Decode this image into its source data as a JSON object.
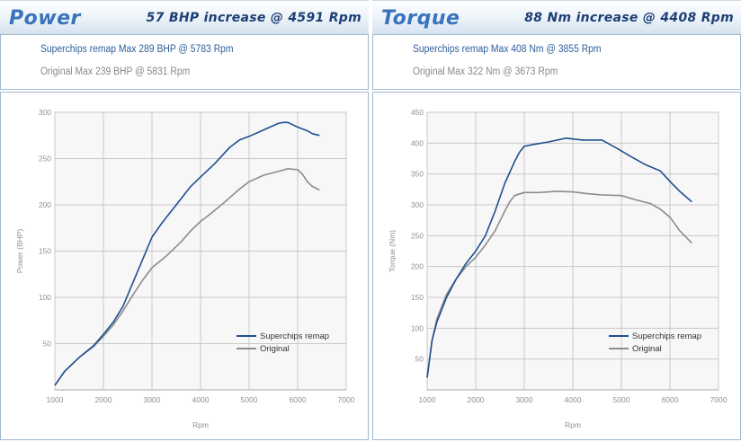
{
  "panels": {
    "power": {
      "title": "Power",
      "increase": "57 BHP increase @ 4591 Rpm",
      "remap_line": "Superchips remap Max 289 BHP @ 5783 Rpm",
      "original_line": "Original Max 239 BHP @ 5831 Rpm"
    },
    "torque": {
      "title": "Torque",
      "increase": "88 Nm increase @ 4408 Rpm",
      "remap_line": "Superchips remap Max 408 Nm @ 3855 Rpm",
      "original_line": "Original Max 322 Nm @ 3673 Rpm"
    }
  },
  "colors": {
    "remap": "#1f4f8f",
    "original": "#8c8c8c",
    "grid": "#c8c8c8",
    "plot_bg": "#f7f7f7",
    "title": "#3a73bd",
    "increase": "#1d3f75"
  },
  "chart_data": [
    {
      "type": "line",
      "xlabel": "Rpm",
      "ylabel": "Power (BHP)",
      "xlim": [
        1000,
        7000
      ],
      "ylim": [
        0,
        300
      ],
      "xticks": [
        1000,
        2000,
        3000,
        4000,
        5000,
        6000,
        7000
      ],
      "yticks": [
        50,
        100,
        150,
        200,
        250,
        300
      ],
      "grid": true,
      "legend_position": "bottom-right",
      "series": [
        {
          "name": "Superchips remap",
          "key": "remap",
          "x": [
            1000,
            1200,
            1500,
            1800,
            2000,
            2200,
            2400,
            2600,
            2800,
            3000,
            3200,
            3500,
            3800,
            4000,
            4300,
            4600,
            4800,
            5000,
            5300,
            5600,
            5700,
            5800,
            6000,
            6200,
            6300,
            6450
          ],
          "y": [
            5,
            20,
            35,
            48,
            60,
            73,
            90,
            115,
            140,
            165,
            180,
            200,
            220,
            230,
            245,
            262,
            270,
            274,
            281,
            288,
            289,
            289,
            284,
            280,
            277,
            275
          ]
        },
        {
          "name": "Original",
          "key": "original",
          "x": [
            1000,
            1200,
            1500,
            1800,
            2000,
            2200,
            2400,
            2600,
            2800,
            3000,
            3300,
            3600,
            3800,
            4000,
            4200,
            4500,
            4800,
            5000,
            5300,
            5600,
            5800,
            6000,
            6100,
            6200,
            6300,
            6450
          ],
          "y": [
            5,
            20,
            35,
            47,
            58,
            70,
            85,
            102,
            118,
            132,
            145,
            160,
            172,
            182,
            190,
            203,
            217,
            225,
            232,
            236,
            239,
            238,
            233,
            225,
            220,
            216
          ]
        }
      ]
    },
    {
      "type": "line",
      "xlabel": "Rpm",
      "ylabel": "Torque (Nm)",
      "xlim": [
        1000,
        7000
      ],
      "ylim": [
        0,
        450
      ],
      "xticks": [
        1000,
        2000,
        3000,
        4000,
        5000,
        6000,
        7000
      ],
      "yticks": [
        50,
        100,
        150,
        200,
        250,
        300,
        350,
        400,
        450
      ],
      "grid": true,
      "legend_position": "bottom-right",
      "series": [
        {
          "name": "Superchips remap",
          "key": "remap",
          "x": [
            1000,
            1100,
            1200,
            1400,
            1600,
            1800,
            2000,
            2200,
            2400,
            2600,
            2800,
            2900,
            3000,
            3200,
            3500,
            3855,
            4200,
            4600,
            4900,
            5200,
            5500,
            5800,
            6000,
            6200,
            6450
          ],
          "y": [
            20,
            80,
            110,
            150,
            180,
            205,
            225,
            250,
            290,
            335,
            370,
            385,
            395,
            398,
            402,
            408,
            405,
            405,
            392,
            378,
            365,
            355,
            338,
            322,
            305
          ]
        },
        {
          "name": "Original",
          "key": "original",
          "x": [
            1000,
            1100,
            1200,
            1400,
            1600,
            1800,
            2000,
            2200,
            2400,
            2600,
            2700,
            2800,
            3000,
            3300,
            3673,
            4000,
            4300,
            4600,
            5000,
            5300,
            5600,
            5800,
            6000,
            6200,
            6450
          ],
          "y": [
            20,
            80,
            115,
            155,
            180,
            200,
            215,
            235,
            258,
            290,
            305,
            315,
            320,
            320,
            322,
            321,
            318,
            316,
            315,
            308,
            302,
            293,
            280,
            258,
            238
          ]
        }
      ]
    }
  ]
}
